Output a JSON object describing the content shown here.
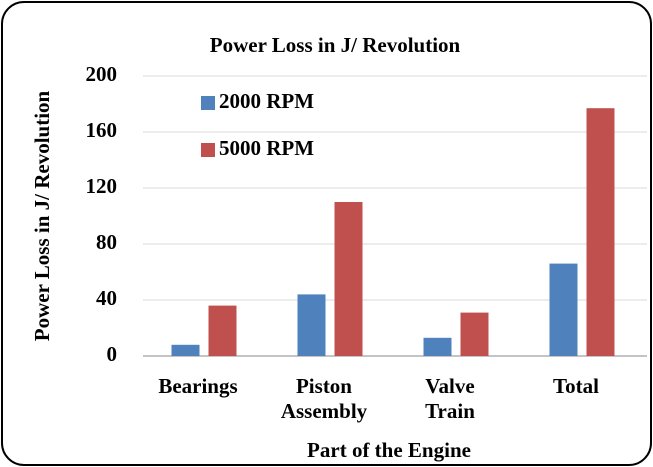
{
  "chart_data": {
    "type": "bar",
    "title": "Power Loss in J/ Revolution",
    "x_label": "Part of the Engine",
    "y_label": "Power Loss in J/ Revolution",
    "categories": [
      "Bearings",
      "Piston Assembly",
      "Valve Train",
      "Total"
    ],
    "series": [
      {
        "name": "2000 RPM",
        "color": "#4f81bd",
        "values": [
          8,
          44,
          13,
          66
        ]
      },
      {
        "name": "5000 RPM",
        "color": "#c0504d",
        "values": [
          36,
          110,
          31,
          177
        ]
      }
    ],
    "ylim": [
      0,
      200
    ],
    "yticks": [
      0,
      40,
      80,
      120,
      160,
      200
    ],
    "grid": true,
    "legend": "upper left"
  }
}
